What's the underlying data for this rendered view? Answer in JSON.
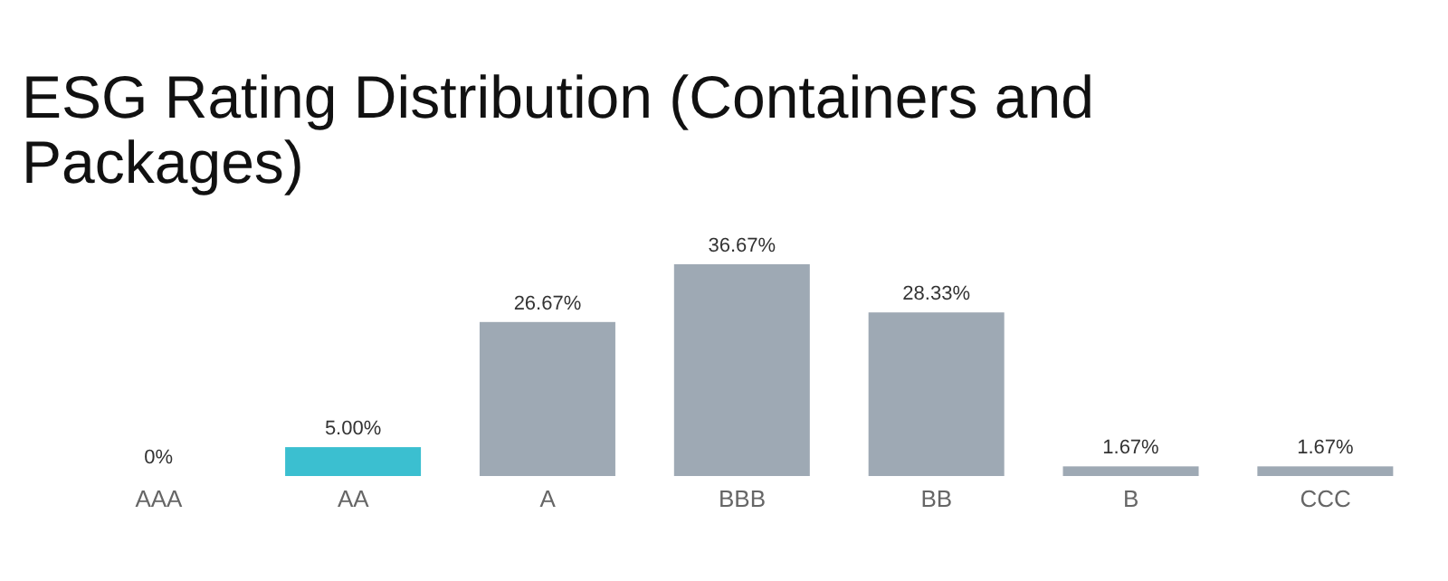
{
  "chart_data": {
    "type": "bar",
    "title": "ESG Rating Distribution (Containers and Packages)",
    "categories": [
      "AAA",
      "AA",
      "A",
      "BBB",
      "BB",
      "B",
      "CCC"
    ],
    "values": [
      0,
      5.0,
      26.67,
      36.67,
      28.33,
      1.67,
      1.67
    ],
    "colors": [
      "#9ea9b4",
      "#3bbfd0",
      "#9ea9b4",
      "#9ea9b4",
      "#9ea9b4",
      "#9ea9b4",
      "#9ea9b4"
    ],
    "value_labels": [
      "0%",
      "5.00%",
      "26.67%",
      "36.67%",
      "28.33%",
      "1.67%",
      "1.67%"
    ],
    "grid": false,
    "legend": false
  }
}
